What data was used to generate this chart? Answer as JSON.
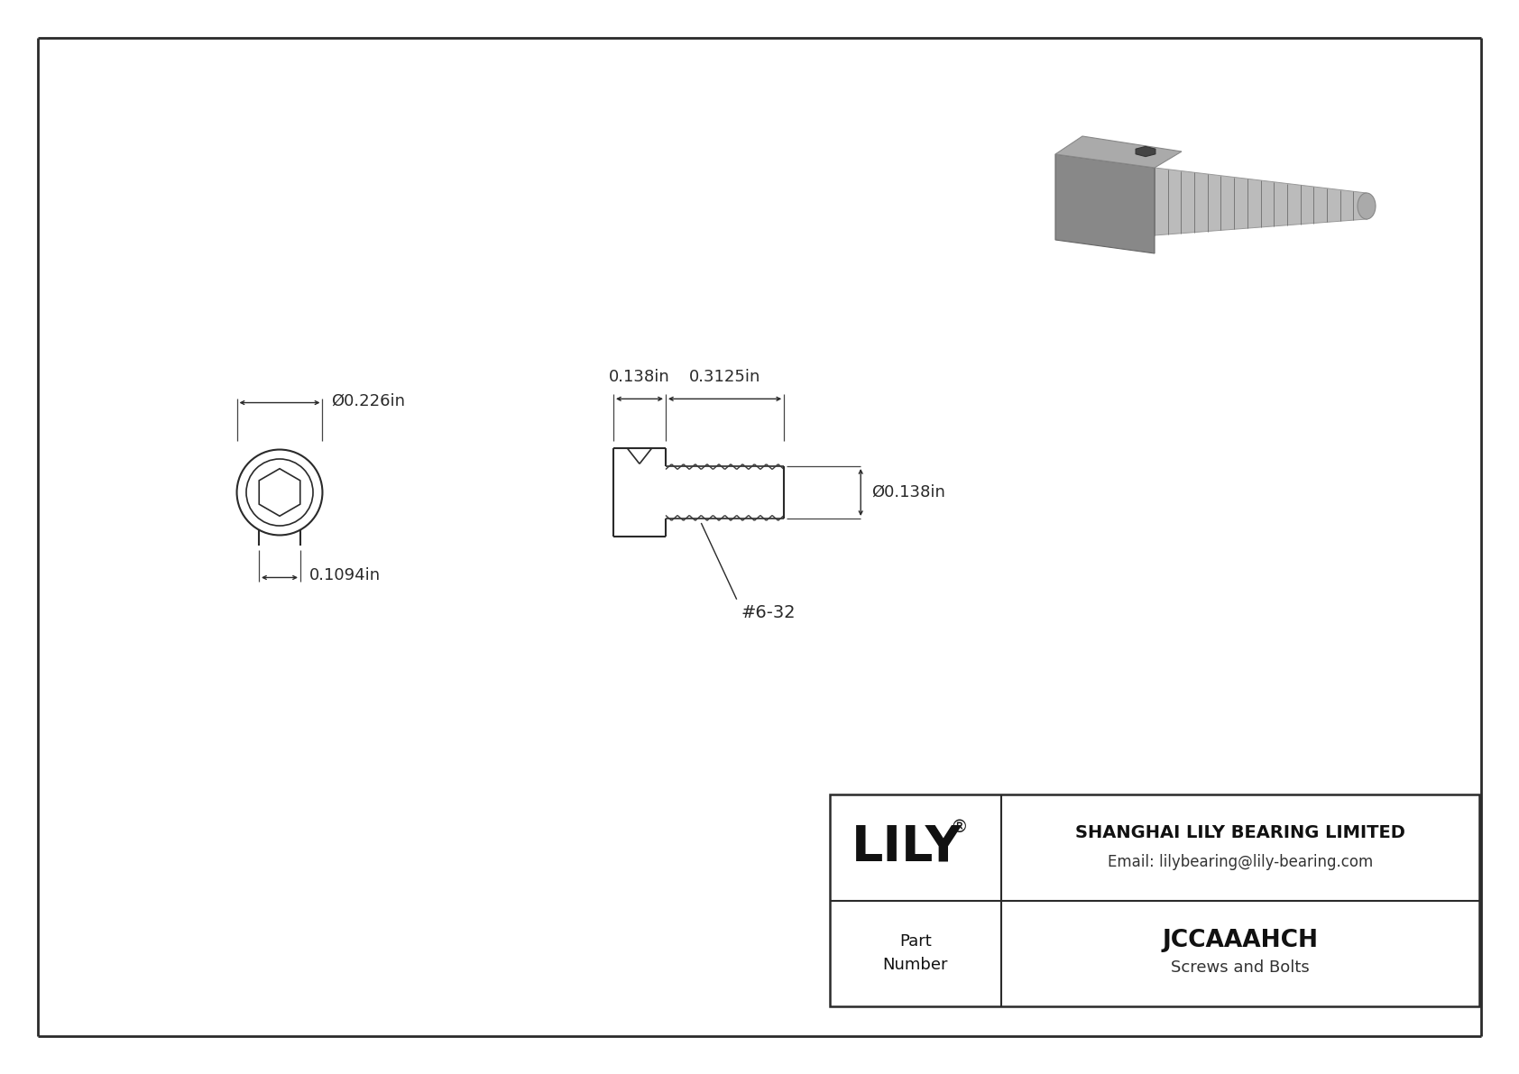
{
  "bg_color": "#ffffff",
  "line_color": "#2a2a2a",
  "dim_color": "#2a2a2a",
  "white": "#ffffff",
  "dim_outer": "0.226in",
  "dim_hex": "0.1094in",
  "dim_head_len": "0.138in",
  "dim_thread_len": "0.3125in",
  "dim_shank_dia": "0.138in",
  "thread_label": "#6-32",
  "company": "SHANGHAI LILY BEARING LIMITED",
  "email": "Email: lilybearing@lily-bearing.com",
  "brand": "LILY",
  "part_number": "JCCAAAHCH",
  "part_type": "Screws and Bolts",
  "part_label": "Part\nNumber",
  "border_lw": 2.0,
  "draw_lw": 1.5,
  "dim_lw": 1.0,
  "scale": 420
}
